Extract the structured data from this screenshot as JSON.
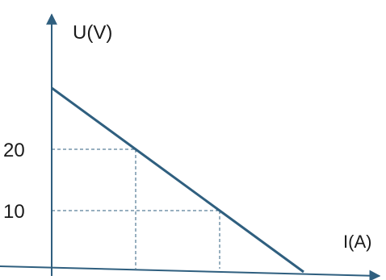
{
  "chart_data": {
    "type": "line",
    "xlabel": "I(A)",
    "ylabel": "U(V)",
    "y_ticks": [
      {
        "value": 10,
        "label": "10"
      },
      {
        "value": 20,
        "label": "20"
      }
    ],
    "series": [
      {
        "x": [
          0,
          1.0,
          2.0,
          3.0
        ],
        "y": [
          30,
          20,
          10,
          0
        ]
      }
    ],
    "reference_lines": [
      {
        "x": 1.0,
        "y": 20
      },
      {
        "x": 2.0,
        "y": 10
      }
    ],
    "x_range": [
      0,
      4.1
    ],
    "y_range": [
      0,
      40
    ],
    "grid": false,
    "colors": {
      "axis": "#2f5f7f",
      "line": "#2f5f7f",
      "guide": "#2f5f7f",
      "text": "#1a1a1a"
    }
  }
}
